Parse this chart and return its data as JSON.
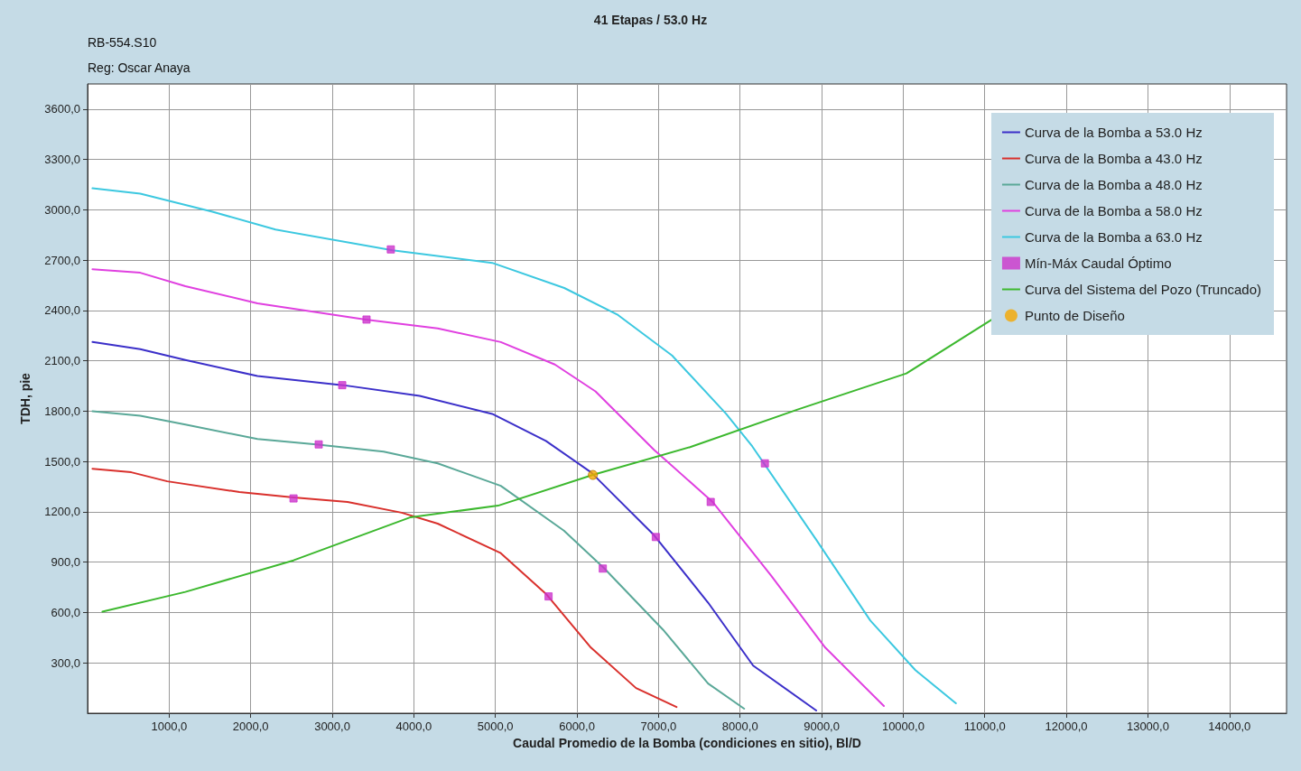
{
  "chart_data": {
    "type": "line",
    "title": "41 Etapas / 53.0 Hz",
    "subtitle": "RB-554.S10",
    "annotations": [
      "Reg: Oscar Anaya"
    ],
    "xlabel": "Caudal Promedio de la Bomba (condiciones en sitio), Bl/D",
    "ylabel": "TDH, pie",
    "xlim": [
      0,
      14700
    ],
    "ylim": [
      0,
      3750
    ],
    "xticks": [
      {
        "value": 1000,
        "label": "1000,0"
      },
      {
        "value": 2000,
        "label": "2000,0"
      },
      {
        "value": 3000,
        "label": "3000,0"
      },
      {
        "value": 4000,
        "label": "4000,0"
      },
      {
        "value": 5000,
        "label": "5000,0"
      },
      {
        "value": 6000,
        "label": "6000,0"
      },
      {
        "value": 7000,
        "label": "7000,0"
      },
      {
        "value": 8000,
        "label": "8000,0"
      },
      {
        "value": 9000,
        "label": "9000,0"
      },
      {
        "value": 10000,
        "label": "10000,0"
      },
      {
        "value": 11000,
        "label": "11000,0"
      },
      {
        "value": 12000,
        "label": "12000,0"
      },
      {
        "value": 13000,
        "label": "13000,0"
      },
      {
        "value": 14000,
        "label": "14000,0"
      }
    ],
    "yticks": [
      {
        "value": 300,
        "label": "300,0"
      },
      {
        "value": 600,
        "label": "600,0"
      },
      {
        "value": 900,
        "label": "900,0"
      },
      {
        "value": 1200,
        "label": "1200,0"
      },
      {
        "value": 1500,
        "label": "1500,0"
      },
      {
        "value": 1800,
        "label": "1800,0"
      },
      {
        "value": 2100,
        "label": "2100,0"
      },
      {
        "value": 2400,
        "label": "2400,0"
      },
      {
        "value": 2700,
        "label": "2700,0"
      },
      {
        "value": 3000,
        "label": "3000,0"
      },
      {
        "value": 3300,
        "label": "3300,0"
      },
      {
        "value": 3600,
        "label": "3600,0"
      }
    ],
    "grid": true,
    "legend": "top right",
    "marker": "none",
    "line_style": "solid",
    "series": [
      {
        "name": "Curva de la Bomba a 53.0 Hz",
        "color": "#3b2fc9",
        "x": [
          60,
          646,
          1199,
          2083,
          3133,
          4072,
          4961,
          5619,
          6172,
          6945,
          7608,
          8160,
          8934
        ],
        "values": [
          2212,
          2170,
          2105,
          2009,
          1955,
          1891,
          1784,
          1623,
          1436,
          1061,
          659,
          284,
          16
        ]
      },
      {
        "name": "Curva de la Bomba a 43.0 Hz",
        "color": "#d9302c",
        "x": [
          60,
          535,
          977,
          1862,
          2525,
          3188,
          3851,
          4293,
          5066,
          5619,
          6171,
          6724,
          7221
        ],
        "values": [
          1457,
          1436,
          1382,
          1318,
          1286,
          1259,
          1195,
          1130,
          954,
          712,
          391,
          150,
          37
        ]
      },
      {
        "name": "Curva de la Bomba a 48.0 Hz",
        "color": "#5aa898",
        "x": [
          60,
          646,
          1199,
          2083,
          2801,
          3630,
          4293,
          5066,
          5840,
          6337,
          7055,
          7608,
          8050
        ],
        "values": [
          1800,
          1773,
          1720,
          1634,
          1602,
          1559,
          1489,
          1355,
          1088,
          862,
          498,
          177,
          27
        ]
      },
      {
        "name": "Curva de la Bomba a 58.0 Hz",
        "color": "#e040e0",
        "x": [
          60,
          646,
          1199,
          2083,
          3409,
          4293,
          5066,
          5729,
          6227,
          6945,
          7663,
          8381,
          9044,
          9763
        ],
        "values": [
          2646,
          2625,
          2545,
          2443,
          2346,
          2293,
          2212,
          2078,
          1918,
          1570,
          1259,
          820,
          391,
          43
        ]
      },
      {
        "name": "Curva de la Bomba a 63.0 Hz",
        "color": "#3cc8e0",
        "x": [
          60,
          646,
          1530,
          2304,
          3740,
          4961,
          5845,
          6504,
          7166,
          7829,
          8150,
          8934,
          9597,
          10149,
          10646
        ],
        "values": [
          3128,
          3096,
          2989,
          2882,
          2759,
          2684,
          2534,
          2373,
          2132,
          1784,
          1590,
          1034,
          552,
          257,
          59
        ]
      },
      {
        "name": "Mín-Máx Caudal Óptimo",
        "type": "scatter",
        "marker": "square",
        "color": "#cc33cc",
        "x": [
          3122,
          6967,
          2525,
          5652,
          2834,
          6317,
          3420,
          7640,
          3718,
          8304
        ],
        "values": [
          1955,
          1050,
          1280,
          696,
          1602,
          862,
          2346,
          1259,
          2764,
          1489
        ]
      },
      {
        "name": "Curva del Sistema del Pozo (Truncado)",
        "color": "#3cb82e",
        "x": [
          182,
          1199,
          2525,
          3961,
          5033,
          6195,
          7387,
          8713,
          10039,
          11088
        ],
        "values": [
          605,
          723,
          911,
          1168,
          1237,
          1420,
          1586,
          1811,
          2025,
          2346
        ]
      },
      {
        "name": "Punto de Diseño",
        "type": "scatter",
        "marker": "circle",
        "color": "#f5a800",
        "x": [
          6195
        ],
        "values": [
          1420
        ]
      }
    ]
  }
}
